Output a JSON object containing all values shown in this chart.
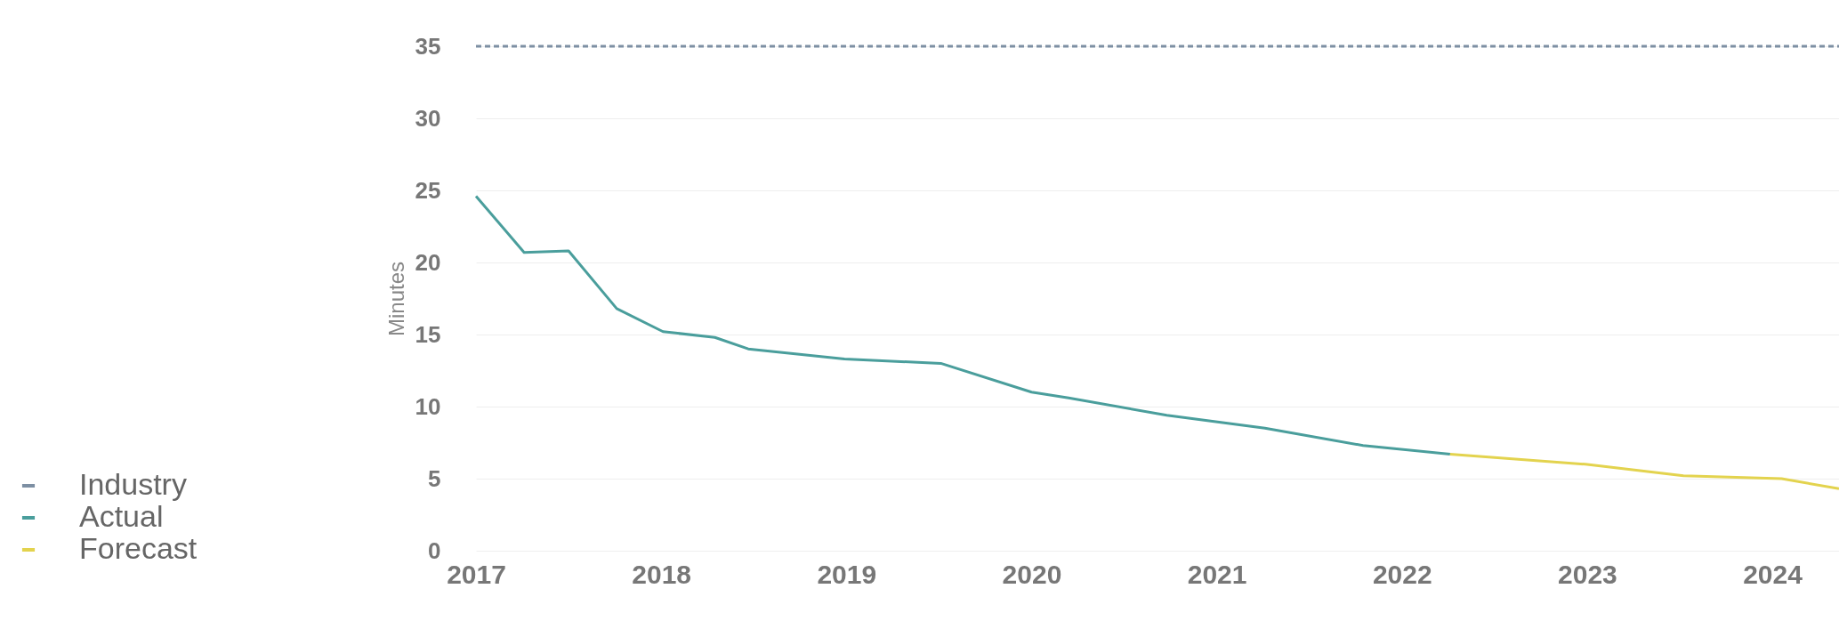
{
  "chart_data": {
    "type": "line",
    "ylabel": "Minutes",
    "xlim": [
      2017,
      2024.36
    ],
    "xticks": [
      2017,
      2018,
      2019,
      2020,
      2021,
      2022,
      2023,
      2024
    ],
    "ylim": [
      0,
      35
    ],
    "yticks": [
      0,
      5,
      10,
      15,
      20,
      25,
      30,
      35
    ],
    "grid": "y",
    "legend": "bottom left",
    "marker": "none",
    "series": [
      {
        "name": "Industry",
        "color": "#7d8fa3",
        "line_style": "dashed",
        "x": [
          2017,
          2024.36
        ],
        "values": [
          35,
          35
        ]
      },
      {
        "name": "Actual",
        "color": "#4a9e9c",
        "line_style": "solid",
        "x": [
          2017.0,
          2017.26,
          2017.5,
          2017.76,
          2018.01,
          2018.29,
          2018.47,
          2018.99,
          2019.51,
          2020.0,
          2020.2,
          2020.73,
          2021.26,
          2021.79,
          2022.26
        ],
        "values": [
          24.6,
          20.7,
          20.8,
          16.8,
          15.2,
          14.8,
          14.0,
          13.3,
          13.0,
          11.0,
          10.6,
          9.4,
          8.5,
          7.3,
          6.7
        ]
      },
      {
        "name": "Forecast",
        "color": "#e3d34e",
        "line_style": "solid",
        "x": [
          2022.26,
          2022.99,
          2023.52,
          2024.05,
          2024.36
        ],
        "values": [
          6.7,
          6.0,
          5.2,
          5.0,
          4.3
        ]
      }
    ]
  }
}
